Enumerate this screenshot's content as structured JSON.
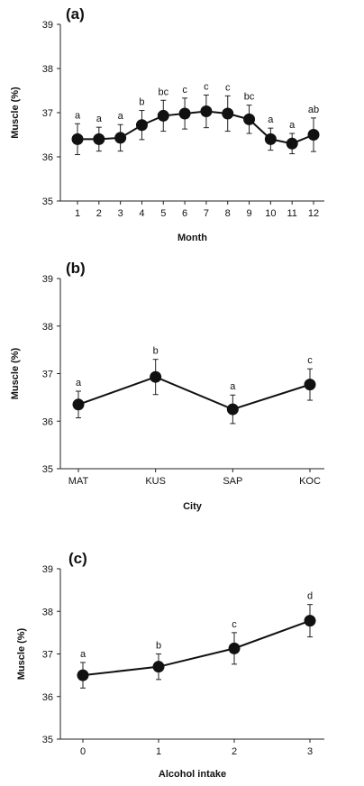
{
  "chart_data": [
    {
      "type": "line",
      "panel_label": "(a)",
      "xlabel": "Month",
      "ylabel": "Muscle  (%)",
      "ylim": [
        35,
        39
      ],
      "yticks": [
        "35",
        "36",
        "37",
        "38",
        "39"
      ],
      "categories": [
        "1",
        "2",
        "3",
        "4",
        "5",
        "6",
        "7",
        "8",
        "9",
        "10",
        "11",
        "12"
      ],
      "values": [
        36.4,
        36.4,
        36.43,
        36.72,
        36.93,
        36.98,
        37.03,
        36.98,
        36.85,
        36.4,
        36.3,
        36.5
      ],
      "errors": [
        0.35,
        0.27,
        0.3,
        0.33,
        0.35,
        0.35,
        0.37,
        0.4,
        0.32,
        0.25,
        0.23,
        0.38
      ],
      "sig_labels": [
        "a",
        "a",
        "a",
        "b",
        "bc",
        "c",
        "c",
        "c",
        "bc",
        "a",
        "a",
        "ab"
      ],
      "grid": false
    },
    {
      "type": "line",
      "panel_label": "(b)",
      "xlabel": "City",
      "ylabel": "Muscle  (%)",
      "ylim": [
        35,
        39
      ],
      "yticks": [
        "35",
        "36",
        "37",
        "38",
        "39"
      ],
      "categories": [
        "MAT",
        "KUS",
        "SAP",
        "KOC"
      ],
      "values": [
        36.35,
        36.93,
        36.25,
        36.77
      ],
      "errors": [
        0.28,
        0.37,
        0.3,
        0.33
      ],
      "sig_labels": [
        "a",
        "b",
        "a",
        "c"
      ],
      "grid": false
    },
    {
      "type": "line",
      "panel_label": "(c)",
      "xlabel": "Alcohol  intake",
      "ylabel": "Muscle  (%)",
      "ylim": [
        35,
        39
      ],
      "yticks": [
        "35",
        "36",
        "37",
        "38",
        "39"
      ],
      "categories": [
        "0",
        "1",
        "2",
        "3"
      ],
      "values": [
        36.5,
        36.7,
        37.13,
        37.78
      ],
      "errors": [
        0.3,
        0.3,
        0.37,
        0.38
      ],
      "sig_labels": [
        "a",
        "b",
        "c",
        "d"
      ],
      "grid": false
    }
  ]
}
